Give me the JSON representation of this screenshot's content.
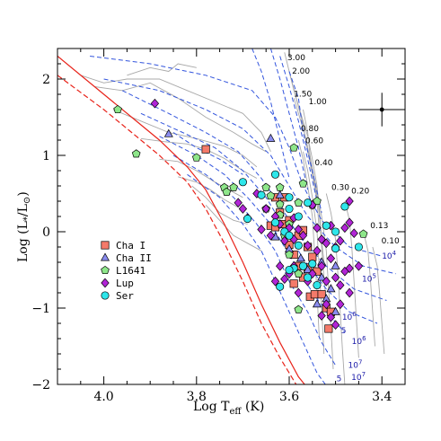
{
  "chart_data": {
    "type": "scatter",
    "xlabel_main": "Log T",
    "xlabel_sub": "eff",
    "xlabel_unit": " (K)",
    "ylabel_main": "Log (L",
    "ylabel_sub": "*",
    "ylabel_mid": "/L",
    "ylabel_sup": "⊙",
    "ylabel_end": ")",
    "xlim": [
      4.1,
      3.35
    ],
    "ylim": [
      -2,
      2.4
    ],
    "x_ticks": [
      4.0,
      3.8,
      3.6,
      3.4
    ],
    "x_tick_labels": [
      "4.0",
      "3.8",
      "3.6",
      "3.4"
    ],
    "y_ticks": [
      2,
      1,
      0,
      -1,
      -2
    ],
    "y_tick_labels": [
      "2",
      "1",
      "0",
      "−1",
      "−2"
    ],
    "legend_position": "left-center",
    "series": [
      {
        "name": "Cha I",
        "marker": "square",
        "color": "#f47a6a",
        "points": [
          [
            3.78,
            1.08
          ],
          [
            3.63,
            0.45
          ],
          [
            3.61,
            0.45
          ],
          [
            3.62,
            0.25
          ],
          [
            3.64,
            0.08
          ],
          [
            3.63,
            0.06
          ],
          [
            3.615,
            0.1
          ],
          [
            3.6,
            0.15
          ],
          [
            3.58,
            -0.05
          ],
          [
            3.57,
            0.02
          ],
          [
            3.6,
            -0.17
          ],
          [
            3.56,
            -0.2
          ],
          [
            3.59,
            -0.3
          ],
          [
            3.55,
            -0.33
          ],
          [
            3.58,
            -0.45
          ],
          [
            3.56,
            -0.47
          ],
          [
            3.54,
            -0.52
          ],
          [
            3.57,
            -0.6
          ],
          [
            3.59,
            -0.68
          ],
          [
            3.555,
            -0.85
          ],
          [
            3.545,
            -0.82
          ],
          [
            3.53,
            -0.82
          ],
          [
            3.52,
            -1.0
          ],
          [
            3.51,
            -1.05
          ],
          [
            3.515,
            -1.27
          ]
        ]
      },
      {
        "name": "Cha II",
        "marker": "triangle",
        "color": "#8a8cf0",
        "points": [
          [
            3.86,
            1.28
          ],
          [
            3.64,
            1.22
          ],
          [
            3.62,
            0.48
          ],
          [
            3.63,
            -0.07
          ],
          [
            3.6,
            -0.23
          ],
          [
            3.575,
            -0.35
          ],
          [
            3.56,
            -0.5
          ],
          [
            3.53,
            -0.4
          ],
          [
            3.5,
            -0.45
          ],
          [
            3.53,
            -0.6
          ],
          [
            3.51,
            -0.75
          ],
          [
            3.52,
            -0.88
          ],
          [
            3.54,
            -0.95
          ],
          [
            3.5,
            -1.05
          ]
        ]
      },
      {
        "name": "L1641",
        "marker": "pentagon",
        "color": "#8ee68a",
        "points": [
          [
            3.97,
            1.6
          ],
          [
            3.93,
            1.02
          ],
          [
            3.8,
            0.97
          ],
          [
            3.74,
            0.58
          ],
          [
            3.735,
            0.52
          ],
          [
            3.72,
            0.58
          ],
          [
            3.65,
            0.58
          ],
          [
            3.64,
            0.47
          ],
          [
            3.62,
            0.58
          ],
          [
            3.62,
            0.36
          ],
          [
            3.65,
            0.3
          ],
          [
            3.62,
            0.22
          ],
          [
            3.6,
            0.1
          ],
          [
            3.58,
            0.38
          ],
          [
            3.57,
            0.63
          ],
          [
            3.55,
            0.35
          ],
          [
            3.59,
            1.1
          ],
          [
            3.54,
            0.4
          ],
          [
            3.61,
            -0.05
          ],
          [
            3.6,
            -0.3
          ],
          [
            3.58,
            -0.55
          ],
          [
            3.58,
            -1.02
          ],
          [
            3.44,
            -0.03
          ]
        ]
      },
      {
        "name": "Lup",
        "marker": "diamond",
        "color": "#b125d6",
        "points": [
          [
            3.89,
            1.68
          ],
          [
            3.71,
            0.38
          ],
          [
            3.7,
            0.3
          ],
          [
            3.69,
            0.18
          ],
          [
            3.67,
            0.5
          ],
          [
            3.66,
            0.03
          ],
          [
            3.65,
            0.3
          ],
          [
            3.64,
            -0.05
          ],
          [
            3.63,
            0.2
          ],
          [
            3.62,
            0.1
          ],
          [
            3.61,
            -0.12
          ],
          [
            3.6,
            0.05
          ],
          [
            3.59,
            -0.1
          ],
          [
            3.58,
            0.03
          ],
          [
            3.59,
            0.18
          ],
          [
            3.57,
            -0.05
          ],
          [
            3.56,
            -0.18
          ],
          [
            3.55,
            0.35
          ],
          [
            3.54,
            0.05
          ],
          [
            3.53,
            -0.1
          ],
          [
            3.52,
            -0.15
          ],
          [
            3.51,
            0.08
          ],
          [
            3.5,
            -0.2
          ],
          [
            3.49,
            -0.12
          ],
          [
            3.48,
            0.05
          ],
          [
            3.47,
            0.4
          ],
          [
            3.47,
            0.12
          ],
          [
            3.46,
            -0.02
          ],
          [
            3.45,
            -0.45
          ],
          [
            3.47,
            -0.48
          ],
          [
            3.48,
            -0.52
          ],
          [
            3.49,
            -0.7
          ],
          [
            3.5,
            -0.6
          ],
          [
            3.51,
            -0.35
          ],
          [
            3.52,
            -0.65
          ],
          [
            3.53,
            -0.45
          ],
          [
            3.54,
            -0.25
          ],
          [
            3.55,
            -0.55
          ],
          [
            3.56,
            -0.65
          ],
          [
            3.58,
            -0.8
          ],
          [
            3.59,
            -0.45
          ],
          [
            3.6,
            -0.55
          ],
          [
            3.61,
            -0.62
          ],
          [
            3.62,
            -0.45
          ],
          [
            3.63,
            -0.65
          ],
          [
            3.52,
            -0.95
          ],
          [
            3.51,
            -1.12
          ],
          [
            3.5,
            -1.22
          ],
          [
            3.53,
            -1.1
          ],
          [
            3.49,
            -0.95
          ],
          [
            3.47,
            -0.8
          ]
        ]
      },
      {
        "name": "Ser",
        "marker": "circle",
        "color": "#2ee6ea",
        "points": [
          [
            3.7,
            0.65
          ],
          [
            3.66,
            0.48
          ],
          [
            3.63,
            0.75
          ],
          [
            3.6,
            0.45
          ],
          [
            3.6,
            0.3
          ],
          [
            3.58,
            0.2
          ],
          [
            3.56,
            0.38
          ],
          [
            3.69,
            0.17
          ],
          [
            3.63,
            0.12
          ],
          [
            3.61,
            0.0
          ],
          [
            3.6,
            -0.05
          ],
          [
            3.58,
            -0.18
          ],
          [
            3.52,
            0.08
          ],
          [
            3.5,
            0.0
          ],
          [
            3.5,
            -0.22
          ],
          [
            3.48,
            0.33
          ],
          [
            3.45,
            -0.2
          ],
          [
            3.59,
            -0.48
          ],
          [
            3.57,
            -0.45
          ],
          [
            3.56,
            -0.6
          ],
          [
            3.55,
            -0.42
          ],
          [
            3.54,
            -0.7
          ],
          [
            3.62,
            -0.72
          ],
          [
            3.6,
            -0.5
          ]
        ]
      }
    ],
    "error_bar": {
      "x": 3.4,
      "y": 1.6,
      "xerr": 0.05,
      "yerr": 0.22
    },
    "mass_labels": [
      {
        "text": "3.00",
        "x": 3.604,
        "y": 2.25
      },
      {
        "text": "2.00",
        "x": 3.594,
        "y": 2.07
      },
      {
        "text": "1.50",
        "x": 3.59,
        "y": 1.77
      },
      {
        "text": "1.00",
        "x": 3.558,
        "y": 1.67
      },
      {
        "text": "0.80",
        "x": 3.575,
        "y": 1.32
      },
      {
        "text": "0.60",
        "x": 3.565,
        "y": 1.16
      },
      {
        "text": "0.40",
        "x": 3.545,
        "y": 0.87
      },
      {
        "text": "0.30",
        "x": 3.509,
        "y": 0.55
      },
      {
        "text": "0.20",
        "x": 3.466,
        "y": 0.5
      },
      {
        "text": "0.13",
        "x": 3.425,
        "y": 0.05
      },
      {
        "text": "0.10",
        "x": 3.401,
        "y": -0.15
      }
    ],
    "age_labels": [
      {
        "text": "10",
        "sup": "4",
        "x": 3.4,
        "y": -0.35
      },
      {
        "text": "10",
        "sup": "5",
        "x": 3.443,
        "y": -0.65
      },
      {
        "text": "10",
        "sup": "6",
        "x": 3.486,
        "y": -1.15
      },
      {
        "text": "5",
        "sup": "",
        "x": 3.488,
        "y": -1.33
      },
      {
        "text": "10",
        "sup": "6",
        "x": 3.465,
        "y": -1.47
      },
      {
        "text": "10",
        "sup": "7",
        "x": 3.473,
        "y": -1.78
      },
      {
        "text": "5",
        "sup": "",
        "x": 3.498,
        "y": -1.96
      },
      {
        "text": "10",
        "sup": "7",
        "x": 3.466,
        "y": -1.94
      }
    ],
    "colors": {
      "zams": "#e8231a",
      "isochrone": "#3355dd",
      "track": "#a8a8a8"
    }
  }
}
